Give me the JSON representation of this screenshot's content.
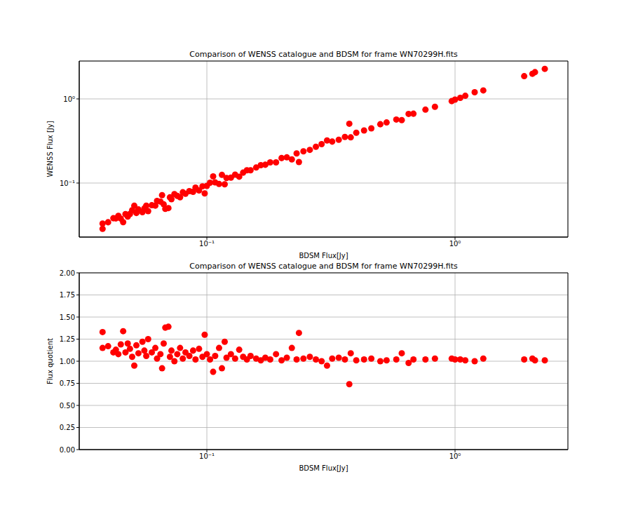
{
  "chart_data": [
    {
      "type": "scatter",
      "title": "Comparison of WENSS catalogue and BDSM for frame WN70299H.fits",
      "x_label": "BDSM Flux[Jy]",
      "y_label": "WENSS Flux [Jy]",
      "color": "#ff0000",
      "marker": "circle",
      "log": true,
      "grid": true,
      "xlim": [
        0.0306,
        2.85
      ],
      "ylim": [
        0.0228,
        2.82
      ],
      "xticks": [
        {
          "value": 0.1,
          "label": "10⁻¹"
        },
        {
          "value": 1,
          "label": "10⁰"
        }
      ],
      "yticks": [
        {
          "value": 0.1,
          "label": "10⁻¹"
        },
        {
          "value": 1,
          "label": "10⁰"
        }
      ],
      "x": [
        0.038,
        0.038,
        0.04,
        0.042,
        0.043,
        0.044,
        0.045,
        0.046,
        0.047,
        0.048,
        0.049,
        0.05,
        0.051,
        0.052,
        0.053,
        0.055,
        0.056,
        0.057,
        0.058,
        0.06,
        0.062,
        0.063,
        0.065,
        0.066,
        0.067,
        0.068,
        0.07,
        0.071,
        0.072,
        0.074,
        0.076,
        0.078,
        0.08,
        0.082,
        0.085,
        0.088,
        0.09,
        0.093,
        0.096,
        0.098,
        0.1,
        0.103,
        0.106,
        0.108,
        0.112,
        0.115,
        0.118,
        0.12,
        0.125,
        0.13,
        0.135,
        0.14,
        0.145,
        0.15,
        0.158,
        0.165,
        0.172,
        0.18,
        0.19,
        0.2,
        0.21,
        0.22,
        0.23,
        0.235,
        0.245,
        0.26,
        0.275,
        0.29,
        0.305,
        0.32,
        0.34,
        0.36,
        0.375,
        0.38,
        0.4,
        0.43,
        0.46,
        0.5,
        0.53,
        0.58,
        0.61,
        0.65,
        0.68,
        0.76,
        0.83,
        0.97,
        1.0,
        1.05,
        1.1,
        1.2,
        1.3,
        1.9,
        2.05,
        2.1,
        2.3
      ],
      "values": [
        0.0286,
        0.033,
        0.0342,
        0.0382,
        0.038,
        0.0407,
        0.0378,
        0.0343,
        0.0427,
        0.04,
        0.043,
        0.0476,
        0.0537,
        0.0441,
        0.0486,
        0.0451,
        0.05,
        0.0538,
        0.0464,
        0.0545,
        0.0539,
        0.0612,
        0.0602,
        0.0717,
        0.0558,
        0.0493,
        0.0504,
        0.0676,
        0.0643,
        0.074,
        0.0704,
        0.0678,
        0.0777,
        0.0745,
        0.0802,
        0.0786,
        0.0882,
        0.0816,
        0.0914,
        0.0754,
        0.0926,
        0.101,
        0.12,
        0.102,
        0.0974,
        0.125,
        0.0967,
        0.115,
        0.116,
        0.126,
        0.119,
        0.133,
        0.142,
        0.142,
        0.153,
        0.163,
        0.165,
        0.176,
        0.176,
        0.198,
        0.202,
        0.191,
        0.225,
        0.178,
        0.238,
        0.248,
        0.27,
        0.29,
        0.321,
        0.311,
        0.327,
        0.353,
        0.507,
        0.349,
        0.396,
        0.422,
        0.447,
        0.5,
        0.525,
        0.569,
        0.56,
        0.663,
        0.667,
        0.745,
        0.806,
        0.942,
        0.98,
        1.029,
        1.089,
        1.2,
        1.262,
        1.863,
        1.99,
        2.079,
        2.277
      ]
    },
    {
      "type": "scatter",
      "title": "Comparison of WENSS catalogue and BDSM for frame WN70299H.fits",
      "x_label": "BDSM Flux[Jy]",
      "y_label": "Flux quotient",
      "color": "#ff0000",
      "marker": "circle",
      "log": "x",
      "grid": true,
      "xlim": [
        0.0306,
        2.85
      ],
      "ylim": [
        0,
        2
      ],
      "xticks": [
        {
          "value": 0.1,
          "label": "10⁻¹"
        },
        {
          "value": 1,
          "label": "10⁰"
        }
      ],
      "yticks": [
        {
          "value": 0,
          "label": "0.00"
        },
        {
          "value": 0.25,
          "label": "0.25"
        },
        {
          "value": 0.5,
          "label": "0.50"
        },
        {
          "value": 0.75,
          "label": "0.75"
        },
        {
          "value": 1,
          "label": "1.00"
        },
        {
          "value": 1.25,
          "label": "1.25"
        },
        {
          "value": 1.5,
          "label": "1.50"
        },
        {
          "value": 1.75,
          "label": "1.75"
        },
        {
          "value": 2,
          "label": "2.00"
        }
      ],
      "x": [
        0.038,
        0.038,
        0.04,
        0.042,
        0.043,
        0.044,
        0.045,
        0.046,
        0.047,
        0.048,
        0.049,
        0.05,
        0.051,
        0.052,
        0.053,
        0.055,
        0.056,
        0.057,
        0.058,
        0.06,
        0.062,
        0.063,
        0.065,
        0.066,
        0.067,
        0.068,
        0.07,
        0.071,
        0.072,
        0.074,
        0.076,
        0.078,
        0.08,
        0.082,
        0.085,
        0.088,
        0.09,
        0.093,
        0.096,
        0.098,
        0.1,
        0.103,
        0.106,
        0.108,
        0.112,
        0.115,
        0.118,
        0.12,
        0.125,
        0.13,
        0.135,
        0.14,
        0.145,
        0.15,
        0.158,
        0.165,
        0.172,
        0.18,
        0.19,
        0.2,
        0.21,
        0.22,
        0.23,
        0.235,
        0.245,
        0.26,
        0.275,
        0.29,
        0.305,
        0.32,
        0.34,
        0.36,
        0.375,
        0.38,
        0.4,
        0.43,
        0.46,
        0.5,
        0.53,
        0.58,
        0.61,
        0.65,
        0.68,
        0.76,
        0.83,
        0.97,
        1.0,
        1.05,
        1.1,
        1.2,
        1.3,
        1.9,
        2.05,
        2.1,
        2.3
      ],
      "values": [
        1.33,
        1.15,
        1.17,
        1.1,
        1.13,
        1.08,
        1.19,
        1.34,
        1.1,
        1.2,
        1.14,
        1.05,
        0.95,
        1.18,
        1.09,
        1.22,
        1.12,
        1.06,
        1.25,
        1.1,
        1.15,
        1.03,
        1.08,
        0.92,
        1.2,
        1.38,
        1.39,
        1.05,
        1.12,
        1.0,
        1.08,
        1.15,
        1.03,
        1.1,
        1.06,
        1.12,
        1.02,
        1.14,
        1.05,
        1.3,
        1.08,
        1.02,
        0.88,
        1.06,
        1.15,
        0.92,
        1.22,
        1.04,
        1.08,
        1.03,
        1.13,
        1.05,
        1.02,
        1.06,
        1.03,
        1.01,
        1.04,
        1.02,
        1.08,
        1.01,
        1.04,
        1.15,
        1.02,
        1.32,
        1.03,
        1.05,
        1.02,
        1.0,
        0.95,
        1.03,
        1.04,
        1.02,
        0.74,
        1.09,
        1.01,
        1.02,
        1.03,
        1.0,
        1.01,
        1.02,
        1.09,
        0.98,
        1.02,
        1.02,
        1.03,
        1.03,
        1.02,
        1.02,
        1.01,
        1.0,
        1.03,
        1.02,
        1.03,
        1.01,
        1.01
      ]
    }
  ]
}
